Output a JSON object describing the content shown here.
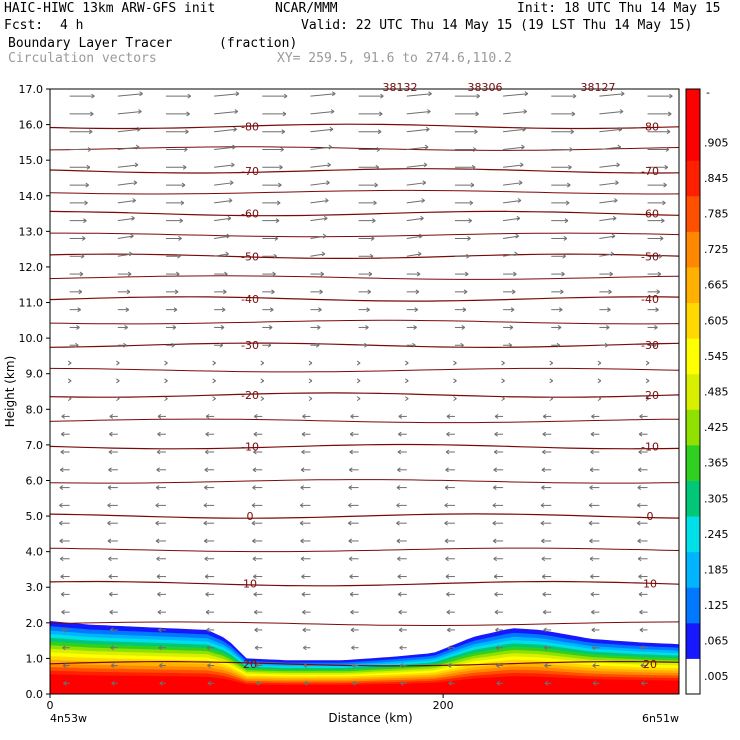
{
  "header": {
    "model": "HAIC-HIWC 13km ARW-GFS init",
    "org": "NCAR/MMM",
    "init": "Init: 18 UTC Thu 14 May 15",
    "fcst_label": "Fcst:",
    "fcst_value": "4 h",
    "valid": "Valid: 22 UTC Thu 14 May 15 (19 LST Thu 14 May 15)",
    "field": "Boundary Layer Tracer",
    "units": "(fraction)",
    "vectors": "Circulation vectors",
    "xy": "XY= 259.5, 91.6 to 274.6,110.2"
  },
  "chart_data": {
    "type": "heatmap",
    "title": "Boundary Layer Tracer",
    "units": "(fraction)",
    "xlabel": "Distance (km)",
    "ylabel": "Height (km)",
    "x_tick_values": [
      0,
      200
    ],
    "x_tick_labels": [
      "0",
      "200"
    ],
    "x_end_labels": [
      "4n53w",
      "6n51w"
    ],
    "xlim": [
      0,
      320
    ],
    "ylim": [
      0,
      17
    ],
    "y_ticks": [
      "0.0",
      "1.0",
      "2.0",
      "3.0",
      "4.0",
      "5.0",
      "6.0",
      "7.0",
      "8.0",
      "9.0",
      "10.0",
      "11.0",
      "12.0",
      "13.0",
      "14.0",
      "15.0",
      "16.0",
      "17.0"
    ],
    "tracer_top_km": [
      [
        0,
        2.05
      ],
      [
        20,
        1.95
      ],
      [
        40,
        1.9
      ],
      [
        80,
        1.8
      ],
      [
        90,
        1.55
      ],
      [
        100,
        1.0
      ],
      [
        120,
        0.95
      ],
      [
        150,
        0.95
      ],
      [
        175,
        1.05
      ],
      [
        195,
        1.15
      ],
      [
        215,
        1.6
      ],
      [
        235,
        1.85
      ],
      [
        250,
        1.8
      ],
      [
        275,
        1.55
      ],
      [
        300,
        1.45
      ],
      [
        320,
        1.4
      ]
    ],
    "colorbar_labels": [
      ".005",
      ".065",
      ".125",
      ".185",
      ".245",
      ".305",
      ".365",
      ".425",
      ".485",
      ".545",
      ".605",
      ".665",
      ".725",
      ".785",
      ".845",
      ".905"
    ],
    "colorbar_colors": [
      "#ffffff",
      "#1818ff",
      "#0078ff",
      "#00b4ff",
      "#00e0e8",
      "#00c878",
      "#30d020",
      "#90e000",
      "#d8f000",
      "#ffff00",
      "#ffd800",
      "#ffb000",
      "#ff8800",
      "#ff5000",
      "#ff2000",
      "#ff0000",
      "#ff0000"
    ],
    "temperature_contours_C": [
      {
        "label": "20",
        "y": 0.85
      },
      {
        "label": "10",
        "y": 3.1
      },
      {
        "label": "0",
        "y": 5.0
      },
      {
        "label": "-10",
        "y": 6.95
      },
      {
        "label": "-20",
        "y": 8.4
      },
      {
        "label": "-30",
        "y": 9.8
      },
      {
        "label": "-40",
        "y": 11.1
      },
      {
        "label": "-50",
        "y": 12.3
      },
      {
        "label": "-60",
        "y": 13.5
      },
      {
        "label": "-70",
        "y": 14.7
      },
      {
        "label": "-80",
        "y": 15.95
      }
    ],
    "top_labels": [
      "38132",
      "38306",
      "38127"
    ],
    "grid": false
  }
}
